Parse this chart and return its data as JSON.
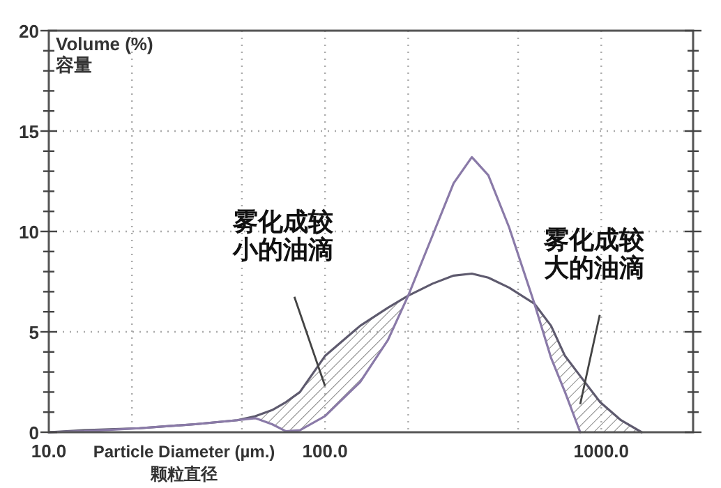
{
  "chart_data": {
    "type": "line",
    "xlabel": "Particle Diameter (µm.)\n颗粒直径",
    "ylabel": "Volume (%)\n容量",
    "log": "x",
    "xlim": [
      10,
      2150
    ],
    "ylim": [
      0,
      20
    ],
    "xticks": [
      {
        "value": 10,
        "label": "10.0"
      },
      {
        "value": 20,
        "label": null
      },
      {
        "value": 50,
        "label": null
      },
      {
        "value": 100,
        "label": "100.0"
      },
      {
        "value": 200,
        "label": null
      },
      {
        "value": 500,
        "label": null
      },
      {
        "value": 1000,
        "label": "1000.0"
      }
    ],
    "yticks": [
      0,
      {
        "value": 1,
        "label": null
      },
      {
        "value": 2,
        "label": null
      },
      {
        "value": 3,
        "label": null
      },
      {
        "value": 4,
        "label": null
      },
      5,
      {
        "value": 6,
        "label": null
      },
      {
        "value": 7,
        "label": null
      },
      {
        "value": 8,
        "label": null
      },
      {
        "value": 9,
        "label": null
      },
      10,
      {
        "value": 11,
        "label": null
      },
      {
        "value": 12,
        "label": null
      },
      {
        "value": 13,
        "label": null
      },
      {
        "value": 14,
        "label": null
      },
      15,
      {
        "value": 16,
        "label": null
      },
      {
        "value": 17,
        "label": null
      },
      {
        "value": 18,
        "label": null
      },
      {
        "value": 19,
        "label": null
      },
      20
    ],
    "grid": true,
    "x": [
      10,
      13.4,
      21.3,
      33.9,
      48.1,
      55.9,
      64.3,
      72.2,
      81.1,
      100,
      134,
      169,
      200,
      245,
      292,
      340,
      390,
      464,
      573,
      658,
      739,
      839,
      990,
      1178,
      1400
    ],
    "series": [
      {
        "color": "#5e5a6e",
        "values": [
          0,
          0.1,
          0.2,
          0.4,
          0.6,
          0.8,
          1.1,
          1.5,
          2.0,
          3.8,
          5.3,
          6.2,
          6.8,
          7.4,
          7.8,
          7.9,
          7.7,
          7.2,
          6.4,
          5.3,
          3.8,
          2.8,
          1.5,
          0.6,
          0
        ],
        "lower": [
          null,
          null,
          null,
          null,
          null,
          0.7,
          0.4,
          0.05,
          0.1,
          0.8,
          2.5,
          4.6,
          6.8,
          null,
          null,
          null,
          null,
          null,
          6.4,
          3.7,
          2.0,
          0,
          0,
          0,
          0
        ],
        "upper": [
          null,
          null,
          null,
          null,
          null,
          0.8,
          1.1,
          1.5,
          2.0,
          3.8,
          5.3,
          6.2,
          6.8,
          null,
          null,
          null,
          null,
          null,
          6.4,
          5.3,
          3.8,
          2.8,
          1.5,
          0.6,
          0
        ]
      },
      {
        "color": "#8a7aa8",
        "values": [
          0,
          0.05,
          0.2,
          0.4,
          0.6,
          0.7,
          0.4,
          0.05,
          0.1,
          0.8,
          2.5,
          4.6,
          6.8,
          9.8,
          12.4,
          13.7,
          12.8,
          10.2,
          6.4,
          3.7,
          2.0,
          0,
          null,
          null,
          null
        ]
      }
    ],
    "annotations": [
      "雾化成较小的油滴",
      "雾化成较大的油滴"
    ]
  }
}
